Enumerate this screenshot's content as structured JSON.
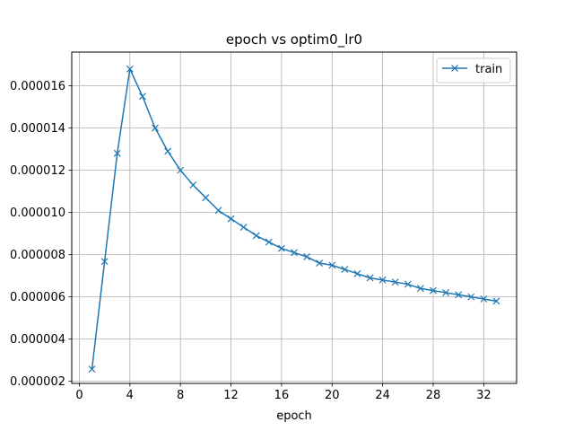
{
  "chart_data": {
    "type": "line",
    "title": "epoch vs optim0_lr0",
    "xlabel": "epoch",
    "ylabel": "",
    "xlim": [
      -0.6,
      34.6
    ],
    "ylim": [
      1.9e-06,
      1.76e-05
    ],
    "xticks": [
      0,
      4,
      8,
      12,
      16,
      20,
      24,
      28,
      32
    ],
    "xtick_labels": [
      "0",
      "4",
      "8",
      "12",
      "16",
      "20",
      "24",
      "28",
      "32"
    ],
    "yticks": [
      2e-06,
      4e-06,
      6e-06,
      8e-06,
      1e-05,
      1.2e-05,
      1.4e-05,
      1.6e-05
    ],
    "ytick_labels": [
      "0.000002",
      "0.000004",
      "0.000006",
      "0.000008",
      "0.000010",
      "0.000012",
      "0.000014",
      "0.000016"
    ],
    "grid": true,
    "legend_position": "top-right",
    "series": [
      {
        "name": "train",
        "color": "#1f77b4",
        "marker": "x",
        "x": [
          1,
          2,
          3,
          4,
          5,
          6,
          7,
          8,
          9,
          10,
          11,
          12,
          13,
          14,
          15,
          16,
          17,
          18,
          19,
          20,
          21,
          22,
          23,
          24,
          25,
          26,
          27,
          28,
          29,
          30,
          31,
          32,
          33
        ],
        "y": [
          2.58e-06,
          7.68e-06,
          1.28e-05,
          1.68e-05,
          1.55e-05,
          1.4e-05,
          1.29e-05,
          1.2e-05,
          1.13e-05,
          1.07e-05,
          1.01e-05,
          9.7e-06,
          9.3e-06,
          8.9e-06,
          8.6e-06,
          8.3e-06,
          8.1e-06,
          7.9e-06,
          7.6e-06,
          7.5e-06,
          7.3e-06,
          7.1e-06,
          6.9e-06,
          6.8e-06,
          6.7e-06,
          6.6e-06,
          6.4e-06,
          6.3e-06,
          6.2e-06,
          6.1e-06,
          6e-06,
          5.9e-06,
          5.8e-06
        ]
      }
    ]
  }
}
